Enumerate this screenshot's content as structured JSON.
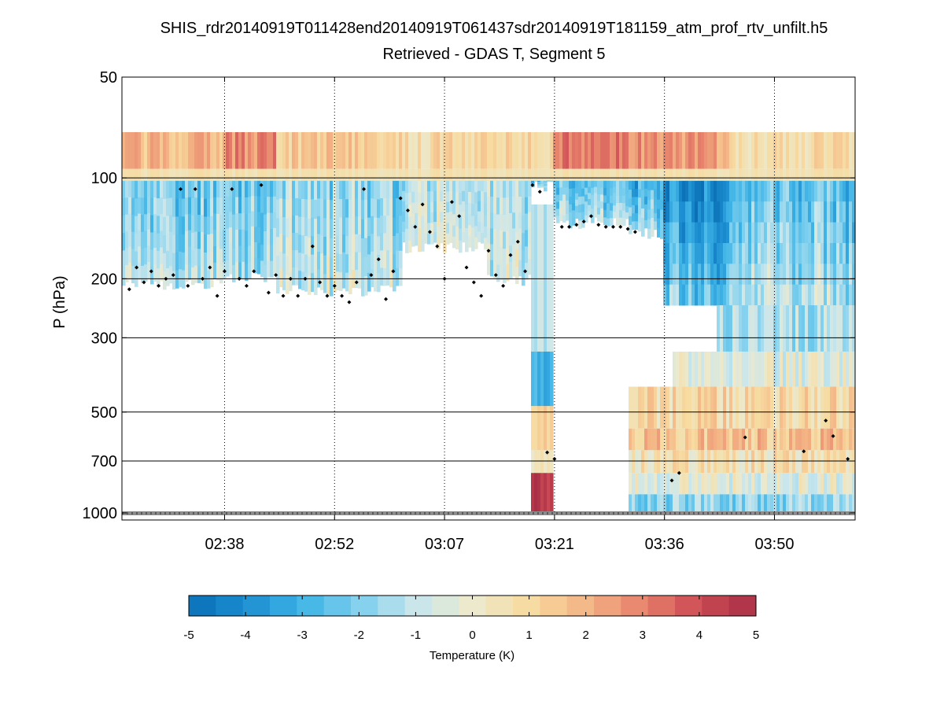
{
  "chart_data": {
    "type": "heatmap",
    "title": "SHIS_rdr20140919T011428end20140919T061437sdr20140919T181159_atm_prof_rtv_unfilt.h5",
    "subtitle": "Retrieved - GDAS T, Segment 5",
    "ylabel": "P (hPa)",
    "xlabel": "",
    "yscale": "log",
    "ylim": [
      50,
      1050
    ],
    "y_reversed": true,
    "xlim_minutes": [
      0,
      100
    ],
    "y_ticks": [
      50,
      100,
      200,
      300,
      500,
      700,
      1000
    ],
    "y_tick_labels": [
      "50",
      "100",
      "200",
      "300",
      "500",
      "700",
      "1000"
    ],
    "y_grid": [
      100,
      200,
      300,
      500,
      700
    ],
    "x_ticks": [
      {
        "label": "02:38",
        "minutes": 14
      },
      {
        "label": "02:52",
        "minutes": 29
      },
      {
        "label": "03:07",
        "minutes": 44
      },
      {
        "label": "03:21",
        "minutes": 59
      },
      {
        "label": "03:36",
        "minutes": 74
      },
      {
        "label": "03:50",
        "minutes": 89
      }
    ],
    "x_grid": "dotted",
    "colorbar": {
      "label": "Temperature (K)",
      "range": [
        -5,
        5
      ],
      "ticks": [
        -5,
        -4,
        -3,
        -2,
        -1,
        0,
        1,
        2,
        3,
        4,
        5
      ],
      "tick_labels": [
        "-5",
        "-4",
        "-3",
        "-2",
        "-1",
        "0",
        "1",
        "2",
        "3",
        "4",
        "5"
      ],
      "levels": 21,
      "colors": [
        "#0a6fb5",
        "#1c8ed1",
        "#3fb4e6",
        "#7fd0ee",
        "#c9e6ec",
        "#ece9cd",
        "#f7dba0",
        "#f4b585",
        "#e7826b",
        "#cd4b55",
        "#a82f45"
      ]
    },
    "surface_pressure_hpa": 1000,
    "segments": [
      {
        "t0": 0,
        "t1": 14,
        "upper": 1.8,
        "mid": -2.2,
        "cloud_top_hpa": 205,
        "below_cloud": "blank"
      },
      {
        "t0": 14,
        "t1": 21,
        "upper": 2.8,
        "mid": -2.0,
        "cloud_top_hpa": 195,
        "below_cloud": "blank"
      },
      {
        "t0": 21,
        "t1": 38,
        "upper": 1.4,
        "mid": -1.6,
        "cloud_top_hpa": 215,
        "below_cloud": "blank"
      },
      {
        "t0": 38,
        "t1": 50,
        "upper": 0.9,
        "mid": -1.2,
        "cloud_top_hpa": 160,
        "below_cloud": "blank"
      },
      {
        "t0": 50,
        "t1": 56,
        "upper": 1.2,
        "mid": -1.4,
        "cloud_top_hpa": 200,
        "below_cloud": "blank"
      },
      {
        "t0": 56,
        "t1": 59,
        "upper": 1.0,
        "mid": -2.6,
        "cloud_top_hpa": 105,
        "below_cloud": "columns"
      },
      {
        "t0": 59,
        "t1": 69,
        "upper": 3.0,
        "mid": -2.4,
        "cloud_top_hpa": 135,
        "below_cloud": "blank"
      },
      {
        "t0": 69,
        "t1": 74,
        "upper": 2.6,
        "mid": -3.2,
        "cloud_top_hpa": 145,
        "below_cloud": "profile"
      },
      {
        "t0": 74,
        "t1": 83,
        "upper": 2.4,
        "mid": -3.8,
        "cloud_top_hpa": null,
        "below_cloud": "profile"
      },
      {
        "t0": 83,
        "t1": 100,
        "upper": 0.8,
        "mid": -2.6,
        "cloud_top_hpa": null,
        "below_cloud": "profile"
      }
    ],
    "cloud_top_markers": [
      {
        "minutes": 1,
        "hpa": 215
      },
      {
        "minutes": 2,
        "hpa": 185
      },
      {
        "minutes": 3,
        "hpa": 205
      },
      {
        "minutes": 4,
        "hpa": 190
      },
      {
        "minutes": 5,
        "hpa": 210
      },
      {
        "minutes": 6,
        "hpa": 200
      },
      {
        "minutes": 7,
        "hpa": 195
      },
      {
        "minutes": 8,
        "hpa": 108
      },
      {
        "minutes": 9,
        "hpa": 210
      },
      {
        "minutes": 10,
        "hpa": 108
      },
      {
        "minutes": 11,
        "hpa": 200
      },
      {
        "minutes": 12,
        "hpa": 185
      },
      {
        "minutes": 13,
        "hpa": 225
      },
      {
        "minutes": 14,
        "hpa": 190
      },
      {
        "minutes": 15,
        "hpa": 108
      },
      {
        "minutes": 16,
        "hpa": 200
      },
      {
        "minutes": 17,
        "hpa": 210
      },
      {
        "minutes": 18,
        "hpa": 190
      },
      {
        "minutes": 19,
        "hpa": 105
      },
      {
        "minutes": 20,
        "hpa": 220
      },
      {
        "minutes": 21,
        "hpa": 195
      },
      {
        "minutes": 22,
        "hpa": 225
      },
      {
        "minutes": 23,
        "hpa": 200
      },
      {
        "minutes": 24,
        "hpa": 225
      },
      {
        "minutes": 25,
        "hpa": 200
      },
      {
        "minutes": 26,
        "hpa": 160
      },
      {
        "minutes": 27,
        "hpa": 205
      },
      {
        "minutes": 28,
        "hpa": 225
      },
      {
        "minutes": 29,
        "hpa": 210
      },
      {
        "minutes": 30,
        "hpa": 225
      },
      {
        "minutes": 31,
        "hpa": 235
      },
      {
        "minutes": 32,
        "hpa": 205
      },
      {
        "minutes": 33,
        "hpa": 108
      },
      {
        "minutes": 34,
        "hpa": 195
      },
      {
        "minutes": 35,
        "hpa": 175
      },
      {
        "minutes": 36,
        "hpa": 230
      },
      {
        "minutes": 37,
        "hpa": 190
      },
      {
        "minutes": 38,
        "hpa": 115
      },
      {
        "minutes": 39,
        "hpa": 125
      },
      {
        "minutes": 40,
        "hpa": 140
      },
      {
        "minutes": 41,
        "hpa": 120
      },
      {
        "minutes": 42,
        "hpa": 145
      },
      {
        "minutes": 43,
        "hpa": 160
      },
      {
        "minutes": 44,
        "hpa": 200
      },
      {
        "minutes": 45,
        "hpa": 118
      },
      {
        "minutes": 46,
        "hpa": 130
      },
      {
        "minutes": 47,
        "hpa": 185
      },
      {
        "minutes": 48,
        "hpa": 205
      },
      {
        "minutes": 49,
        "hpa": 225
      },
      {
        "minutes": 50,
        "hpa": 165
      },
      {
        "minutes": 51,
        "hpa": 195
      },
      {
        "minutes": 52,
        "hpa": 210
      },
      {
        "minutes": 53,
        "hpa": 170
      },
      {
        "minutes": 54,
        "hpa": 155
      },
      {
        "minutes": 55,
        "hpa": 190
      },
      {
        "minutes": 56,
        "hpa": 105
      },
      {
        "minutes": 57,
        "hpa": 110
      },
      {
        "minutes": 58,
        "hpa": 660
      },
      {
        "minutes": 59,
        "hpa": 690
      },
      {
        "minutes": 60,
        "hpa": 140
      },
      {
        "minutes": 61,
        "hpa": 140
      },
      {
        "minutes": 62,
        "hpa": 138
      },
      {
        "minutes": 63,
        "hpa": 135
      },
      {
        "minutes": 64,
        "hpa": 130
      },
      {
        "minutes": 65,
        "hpa": 138
      },
      {
        "minutes": 66,
        "hpa": 140
      },
      {
        "minutes": 67,
        "hpa": 140
      },
      {
        "minutes": 68,
        "hpa": 140
      },
      {
        "minutes": 69,
        "hpa": 142
      },
      {
        "minutes": 70,
        "hpa": 145
      },
      {
        "minutes": 75,
        "hpa": 800
      },
      {
        "minutes": 76,
        "hpa": 760
      },
      {
        "minutes": 85,
        "hpa": 595
      },
      {
        "minutes": 93,
        "hpa": 655
      },
      {
        "minutes": 96,
        "hpa": 530
      },
      {
        "minutes": 97,
        "hpa": 590
      },
      {
        "minutes": 99,
        "hpa": 690
      }
    ]
  }
}
